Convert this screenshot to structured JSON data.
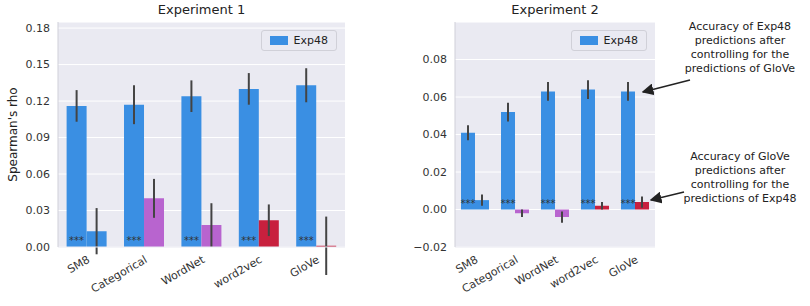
{
  "chart_data": [
    {
      "type": "bar",
      "title": "Experiment 1",
      "y_label": "Spearman's rho",
      "categories": [
        "SM8",
        "Categorical",
        "WordNet",
        "word2vec",
        "GloVe"
      ],
      "series": [
        {
          "name": "Exp48",
          "color": "#3a8fe3",
          "values": [
            0.116,
            0.117,
            0.124,
            0.13,
            0.133
          ],
          "errors": [
            0.013,
            0.016,
            0.013,
            0.013,
            0.014
          ],
          "significance": [
            "***",
            "***",
            "***",
            "***",
            "***"
          ]
        },
        {
          "colors": [
            "#3a8fe3",
            "#b864cf",
            "#b864cf",
            "#c8203e",
            "#c8203e"
          ],
          "values": [
            0.013,
            0.04,
            0.018,
            0.022,
            0.001
          ],
          "errors": [
            0.019,
            0.016,
            0.018,
            0.013,
            0.024
          ]
        }
      ],
      "ylim": [
        0,
        0.185
      ],
      "yticks": [
        {
          "value": 0,
          "label": "0.00"
        },
        0.03,
        0.06,
        0.09,
        0.12,
        0.15,
        0.18
      ],
      "grid": true,
      "legend": "upper right"
    },
    {
      "type": "bar",
      "title": "Experiment 2",
      "categories": [
        "SM8",
        "Categorical",
        "WordNet",
        "word2vec",
        "GloVe"
      ],
      "series": [
        {
          "name": "Exp48",
          "color": "#3a8fe3",
          "values": [
            0.041,
            0.052,
            0.063,
            0.064,
            0.063
          ],
          "errors": [
            0.004,
            0.005,
            0.005,
            0.005,
            0.005
          ],
          "significance": [
            "***",
            "***",
            "***",
            "***",
            "***"
          ]
        },
        {
          "colors": [
            "#3a8fe3",
            "#b864cf",
            "#b864cf",
            "#c8203e",
            "#c8203e"
          ],
          "values": [
            0.005,
            -0.002,
            -0.004,
            0.002,
            0.004
          ],
          "errors": [
            0.003,
            0.002,
            0.003,
            0.002,
            0.003
          ]
        }
      ],
      "ylim": [
        -0.02,
        0.1
      ],
      "yticks": [
        {
          "value": -0.02,
          "label": "−0.02"
        },
        {
          "value": 0,
          "label": "0.00"
        },
        0.02,
        0.04,
        0.06,
        0.08
      ],
      "grid": true,
      "legend": "upper right",
      "annotations": [
        "Accuracy of Exp48 predictions after controlling for the predictions of GloVe",
        "Accuracy of GloVe predictions after controlling for the predictions of Exp48"
      ]
    }
  ]
}
